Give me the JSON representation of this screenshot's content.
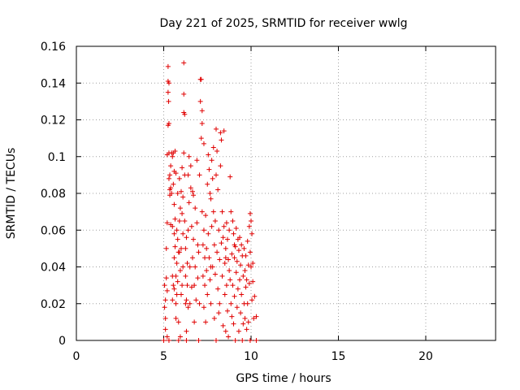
{
  "chart_data": {
    "type": "scatter",
    "title": "Day 221 of 2025, SRMTID for receiver wwlg",
    "xlabel": "GPS time / hours",
    "ylabel": "SRMTID / TECUs",
    "xlim": [
      0,
      24
    ],
    "ylim": [
      0,
      0.16
    ],
    "xticks": [
      "0",
      "5",
      "10",
      "15",
      "20"
    ],
    "yticks": [
      "0",
      "0.02",
      "0.04",
      "0.06",
      "0.08",
      "0.1",
      "0.12",
      "0.14",
      "0.16"
    ],
    "grid": true,
    "series": [
      {
        "name": "SRMTID",
        "color": "#e00000",
        "marker": "plus",
        "points": [
          [
            5.0,
            0.0
          ],
          [
            5.05,
            0.03
          ],
          [
            5.05,
            0.018
          ],
          [
            5.1,
            0.022
          ],
          [
            5.1,
            0.012
          ],
          [
            5.1,
            0.006
          ],
          [
            5.15,
            0.05
          ],
          [
            5.15,
            0.034
          ],
          [
            5.2,
            0.064
          ],
          [
            5.2,
            0.101
          ],
          [
            5.2,
            0.002
          ],
          [
            5.2,
            0.027
          ],
          [
            5.25,
            0.149
          ],
          [
            5.25,
            0.141
          ],
          [
            5.25,
            0.117
          ],
          [
            5.25,
            0.135
          ],
          [
            5.28,
            0.13
          ],
          [
            5.3,
            0.0
          ],
          [
            5.3,
            0.118
          ],
          [
            5.3,
            0.14
          ],
          [
            5.3,
            0.102
          ],
          [
            5.3,
            0.088
          ],
          [
            5.35,
            0.082
          ],
          [
            5.35,
            0.09
          ],
          [
            5.35,
            0.079
          ],
          [
            5.4,
            0.063
          ],
          [
            5.4,
            0.095
          ],
          [
            5.4,
            0.083
          ],
          [
            5.45,
            0.102
          ],
          [
            5.45,
            0.08
          ],
          [
            5.5,
            0.1
          ],
          [
            5.5,
            0.062
          ],
          [
            5.5,
            0.035
          ],
          [
            5.5,
            0.022
          ],
          [
            5.55,
            0.03
          ],
          [
            5.55,
            0.102
          ],
          [
            5.55,
            0.085
          ],
          [
            5.6,
            0.092
          ],
          [
            5.6,
            0.074
          ],
          [
            5.6,
            0.058
          ],
          [
            5.6,
            0.045
          ],
          [
            5.6,
            0.028
          ],
          [
            5.65,
            0.103
          ],
          [
            5.65,
            0.066
          ],
          [
            5.65,
            0.051
          ],
          [
            5.7,
            0.091
          ],
          [
            5.7,
            0.035
          ],
          [
            5.7,
            0.02
          ],
          [
            5.7,
            0.012
          ],
          [
            5.75,
            0.06
          ],
          [
            5.75,
            0.042
          ],
          [
            5.75,
            0.025
          ],
          [
            5.8,
            0.08
          ],
          [
            5.8,
            0.055
          ],
          [
            5.8,
            0.032
          ],
          [
            5.85,
            0.01
          ],
          [
            5.85,
            0.0
          ],
          [
            5.9,
            0.088
          ],
          [
            5.9,
            0.065
          ],
          [
            5.9,
            0.048
          ],
          [
            5.95,
            0.002
          ],
          [
            5.95,
            0.072
          ],
          [
            5.95,
            0.038
          ],
          [
            6.0,
            0.081
          ],
          [
            6.0,
            0.05
          ],
          [
            6.0,
            0.025
          ],
          [
            6.05,
            0.094
          ],
          [
            6.05,
            0.069
          ],
          [
            6.05,
            0.03
          ],
          [
            6.1,
            0.078
          ],
          [
            6.1,
            0.058
          ],
          [
            6.1,
            0.04
          ],
          [
            6.15,
            0.151
          ],
          [
            6.15,
            0.134
          ],
          [
            6.15,
            0.124
          ],
          [
            6.15,
            0.102
          ],
          [
            6.2,
            0.123
          ],
          [
            6.2,
            0.09
          ],
          [
            6.2,
            0.065
          ],
          [
            6.25,
            0.05
          ],
          [
            6.25,
            0.035
          ],
          [
            6.25,
            0.02
          ],
          [
            6.3,
            0.005
          ],
          [
            6.3,
            0.0
          ],
          [
            6.3,
            0.022
          ],
          [
            6.35,
            0.042
          ],
          [
            6.35,
            0.03
          ],
          [
            6.4,
            0.018
          ],
          [
            6.4,
            0.09
          ],
          [
            6.4,
            0.06
          ],
          [
            6.45,
            0.1
          ],
          [
            6.45,
            0.075
          ],
          [
            6.5,
            0.04
          ],
          [
            6.5,
            0.02
          ],
          [
            6.55,
            0.095
          ],
          [
            6.55,
            0.083
          ],
          [
            6.6,
            0.062
          ],
          [
            6.6,
            0.029
          ],
          [
            6.65,
            0.081
          ],
          [
            6.65,
            0.045
          ],
          [
            6.7,
            0.079
          ],
          [
            6.7,
            0.055
          ],
          [
            6.75,
            0.03
          ],
          [
            6.75,
            0.01
          ],
          [
            6.8,
            0.072
          ],
          [
            6.8,
            0.04
          ],
          [
            6.85,
            0.022
          ],
          [
            6.9,
            0.098
          ],
          [
            6.9,
            0.064
          ],
          [
            6.95,
            0.034
          ],
          [
            7.0,
            0.0
          ],
          [
            7.0,
            0.048
          ],
          [
            7.05,
            0.09
          ],
          [
            7.05,
            0.02
          ],
          [
            7.1,
            0.142
          ],
          [
            7.1,
            0.13
          ],
          [
            7.15,
            0.142
          ],
          [
            7.15,
            0.11
          ],
          [
            7.2,
            0.118
          ],
          [
            7.2,
            0.125
          ],
          [
            7.2,
            0.07
          ],
          [
            7.25,
            0.052
          ],
          [
            7.25,
            0.035
          ],
          [
            7.3,
            0.107
          ],
          [
            7.3,
            0.06
          ],
          [
            7.3,
            0.018
          ],
          [
            7.35,
            0.045
          ],
          [
            7.35,
            0.03
          ],
          [
            7.4,
            0.068
          ],
          [
            7.4,
            0.01
          ],
          [
            7.45,
            0.05
          ],
          [
            7.45,
            0.038
          ],
          [
            7.5,
            0.085
          ],
          [
            7.5,
            0.025
          ],
          [
            7.55,
            0.101
          ],
          [
            7.55,
            0.058
          ],
          [
            7.6,
            0.093
          ],
          [
            7.6,
            0.045
          ],
          [
            7.65,
            0.08
          ],
          [
            7.65,
            0.033
          ],
          [
            7.7,
            0.077
          ],
          [
            7.7,
            0.02
          ],
          [
            7.75,
            0.098
          ],
          [
            7.75,
            0.062
          ],
          [
            7.8,
            0.088
          ],
          [
            7.8,
            0.04
          ],
          [
            7.85,
            0.105
          ],
          [
            7.85,
            0.07
          ],
          [
            7.9,
            0.052
          ],
          [
            7.9,
            0.012
          ],
          [
            7.95,
            0.065
          ],
          [
            7.95,
            0.036
          ],
          [
            8.0,
            0.0
          ],
          [
            8.0,
            0.115
          ],
          [
            8.0,
            0.09
          ],
          [
            8.05,
            0.103
          ],
          [
            8.05,
            0.048
          ],
          [
            8.1,
            0.082
          ],
          [
            8.1,
            0.028
          ],
          [
            8.15,
            0.06
          ],
          [
            8.15,
            0.015
          ],
          [
            8.2,
            0.044
          ],
          [
            8.2,
            0.02
          ],
          [
            8.25,
            0.113
          ],
          [
            8.25,
            0.095
          ],
          [
            8.3,
            0.109
          ],
          [
            8.3,
            0.053
          ],
          [
            8.35,
            0.07
          ],
          [
            8.35,
            0.035
          ],
          [
            8.4,
            0.056
          ],
          [
            8.4,
            0.008
          ],
          [
            8.45,
            0.114
          ],
          [
            8.45,
            0.062
          ],
          [
            8.5,
            0.042
          ],
          [
            8.5,
            0.025
          ],
          [
            8.55,
            0.05
          ],
          [
            8.55,
            0.005
          ],
          [
            8.6,
            0.064
          ],
          [
            8.6,
            0.03
          ],
          [
            8.65,
            0.055
          ],
          [
            8.65,
            0.016
          ],
          [
            8.7,
            0.044
          ],
          [
            8.7,
            0.002
          ],
          [
            8.75,
            0.06
          ],
          [
            8.75,
            0.038
          ],
          [
            8.8,
            0.089
          ],
          [
            8.8,
            0.033
          ],
          [
            8.85,
            0.07
          ],
          [
            8.85,
            0.02
          ],
          [
            8.9,
            0.047
          ],
          [
            8.9,
            0.013
          ],
          [
            8.95,
            0.065
          ],
          [
            8.95,
            0.03
          ],
          [
            9.0,
            0.058
          ],
          [
            9.0,
            0.009
          ],
          [
            9.05,
            0.045
          ],
          [
            9.05,
            0.024
          ],
          [
            9.1,
            0.051
          ],
          [
            9.1,
            0.0
          ],
          [
            9.15,
            0.061
          ],
          [
            9.15,
            0.037
          ],
          [
            9.2,
            0.043
          ],
          [
            9.2,
            0.018
          ],
          [
            9.25,
            0.055
          ],
          [
            9.25,
            0.028
          ],
          [
            9.3,
            0.049
          ],
          [
            9.3,
            0.005
          ],
          [
            9.35,
            0.056
          ],
          [
            9.35,
            0.033
          ],
          [
            9.4,
            0.041
          ],
          [
            9.4,
            0.015
          ],
          [
            9.45,
            0.052
          ],
          [
            9.45,
            0.025
          ],
          [
            9.5,
            0.0
          ],
          [
            9.5,
            0.046
          ],
          [
            9.55,
            0.035
          ],
          [
            9.55,
            0.009
          ],
          [
            9.6,
            0.05
          ],
          [
            9.6,
            0.02
          ],
          [
            9.65,
            0.038
          ],
          [
            9.65,
            0.012
          ],
          [
            9.7,
            0.046
          ],
          [
            9.7,
            0.029
          ],
          [
            9.75,
            0.033
          ],
          [
            9.75,
            0.006
          ],
          [
            9.8,
            0.054
          ],
          [
            9.8,
            0.02
          ],
          [
            9.85,
            0.041
          ],
          [
            9.85,
            0.01
          ],
          [
            9.9,
            0.062
          ],
          [
            9.9,
            0.031
          ],
          [
            9.95,
            0.069
          ],
          [
            9.95,
            0.048
          ],
          [
            10.0,
            0.065
          ],
          [
            10.0,
            0.04
          ],
          [
            10.05,
            0.058
          ],
          [
            10.05,
            0.022
          ],
          [
            10.1,
            0.042
          ],
          [
            10.1,
            0.032
          ],
          [
            10.15,
            0.012
          ],
          [
            10.2,
            0.024
          ],
          [
            10.3,
            0.013
          ],
          [
            10.3,
            0.0
          ],
          [
            9.05,
            0.052
          ],
          [
            8.55,
            0.045
          ],
          [
            7.7,
            0.04
          ],
          [
            6.95,
            0.052
          ],
          [
            6.3,
            0.056
          ],
          [
            5.85,
            0.048
          ],
          [
            9.95,
            0.0
          ]
        ]
      }
    ]
  }
}
